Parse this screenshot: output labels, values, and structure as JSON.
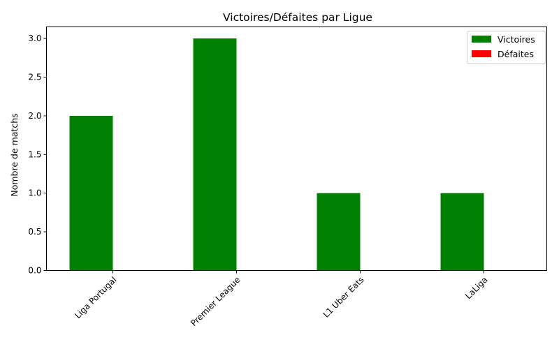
{
  "chart_data": {
    "type": "bar",
    "title": "Victoires/Défaites par Ligue",
    "xlabel": "",
    "ylabel": "Nombre de matchs",
    "categories": [
      "Liga Portugal",
      "Premier League",
      "L1 Uber Eats",
      "LaLiga"
    ],
    "series": [
      {
        "name": "Victoires",
        "values": [
          2,
          3,
          1,
          1
        ],
        "color": "#008000"
      },
      {
        "name": "Défaites",
        "values": [
          0,
          0,
          0,
          0
        ],
        "color": "#ff0000"
      }
    ],
    "ylim": [
      0,
      3.15
    ],
    "yticks": [
      "0.0",
      "0.5",
      "1.0",
      "1.5",
      "2.0",
      "2.5",
      "3.0"
    ],
    "grid": false,
    "legend_position": "top-right"
  }
}
